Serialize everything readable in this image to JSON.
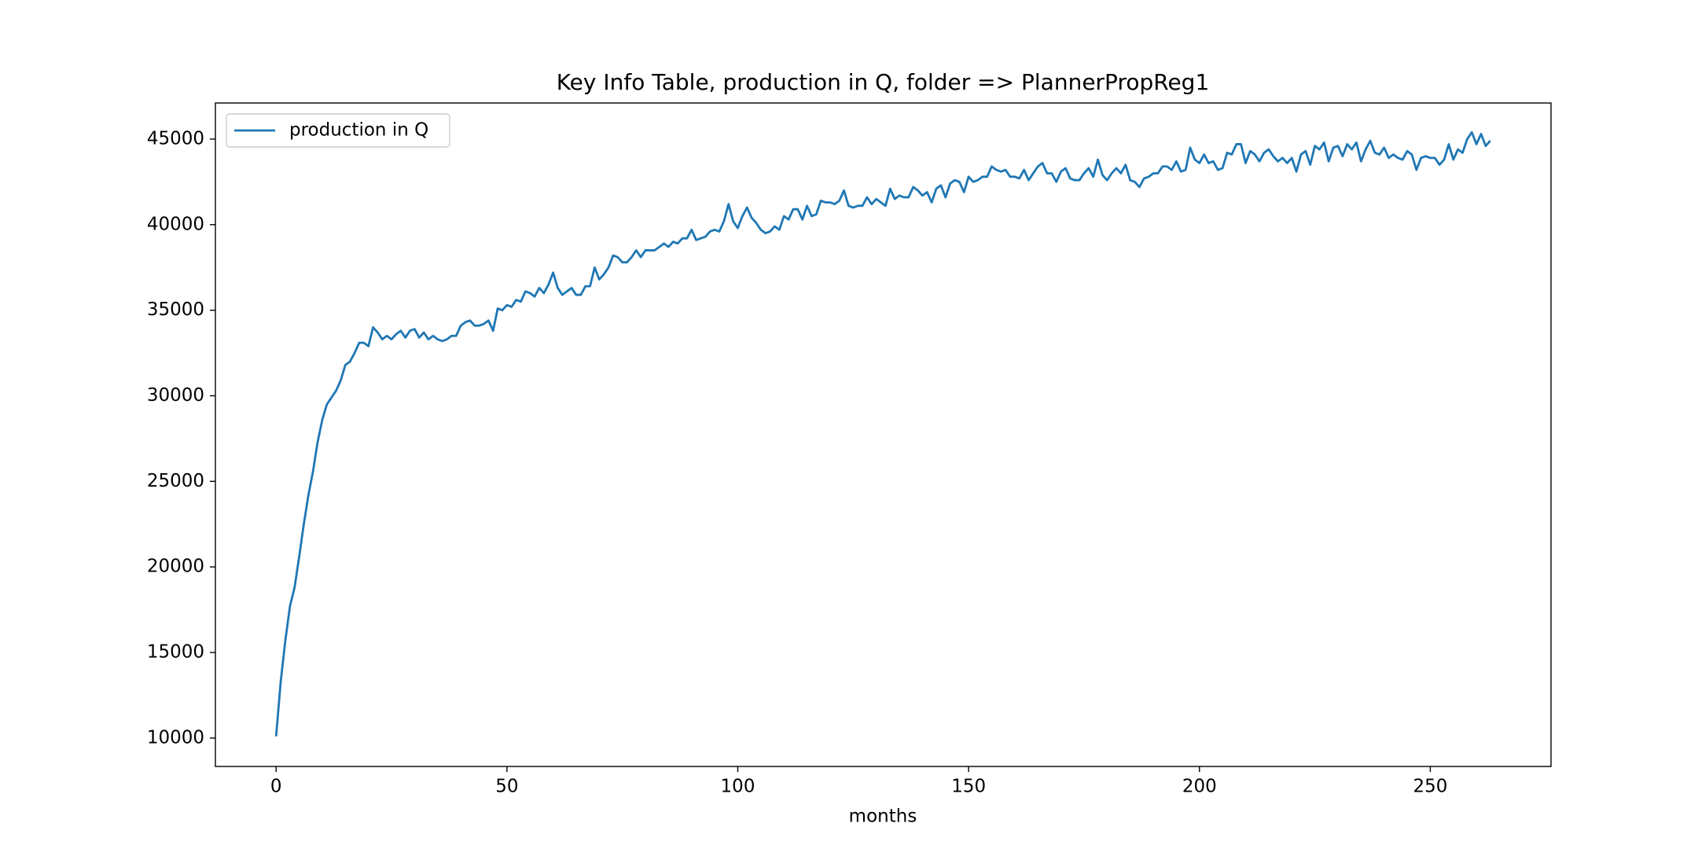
{
  "chart_data": {
    "type": "line",
    "title": "Key Info Table, production in Q, folder => PlannerPropReg1",
    "xlabel": "months",
    "x": [
      0,
      1,
      2,
      3,
      4,
      5,
      6,
      7,
      8,
      9,
      10,
      11,
      12,
      13,
      14,
      15,
      16,
      17,
      18,
      19,
      20,
      21,
      22,
      23,
      24,
      25,
      26,
      27,
      28,
      29,
      30,
      31,
      32,
      33,
      34,
      35,
      36,
      37,
      38,
      39,
      40,
      41,
      42,
      43,
      44,
      45,
      46,
      47,
      48,
      49,
      50,
      51,
      52,
      53,
      54,
      55,
      56,
      57,
      58,
      59,
      60,
      61,
      62,
      63,
      64,
      65,
      66,
      67,
      68,
      69,
      70,
      71,
      72,
      73,
      74,
      75,
      76,
      77,
      78,
      79,
      80,
      81,
      82,
      83,
      84,
      85,
      86,
      87,
      88,
      89,
      90,
      91,
      92,
      93,
      94,
      95,
      96,
      97,
      98,
      99,
      100,
      101,
      102,
      103,
      104,
      105,
      106,
      107,
      108,
      109,
      110,
      111,
      112,
      113,
      114,
      115,
      116,
      117,
      118,
      119,
      120,
      121,
      122,
      123,
      124,
      125,
      126,
      127,
      128,
      129,
      130,
      131,
      132,
      133,
      134,
      135,
      136,
      137,
      138,
      139,
      140,
      141,
      142,
      143,
      144,
      145,
      146,
      147,
      148,
      149,
      150,
      151,
      152,
      153,
      154,
      155,
      156,
      157,
      158,
      159,
      160,
      161,
      162,
      163,
      164,
      165,
      166,
      167,
      168,
      169,
      170,
      171,
      172,
      173,
      174,
      175,
      176,
      177,
      178,
      179,
      180,
      181,
      182,
      183,
      184,
      185,
      186,
      187,
      188,
      189,
      190,
      191,
      192,
      193,
      194,
      195,
      196,
      197,
      198,
      199,
      200,
      201,
      202,
      203,
      204,
      205,
      206,
      207,
      208,
      209,
      210,
      211,
      212,
      213,
      214,
      215,
      216,
      217,
      218,
      219,
      220,
      221,
      222,
      223,
      224,
      225,
      226,
      227,
      228,
      229,
      230,
      231,
      232,
      233,
      234,
      235,
      236,
      237,
      238,
      239,
      240,
      241,
      242,
      243,
      244,
      245,
      246,
      247,
      248,
      249,
      250,
      251,
      252,
      253,
      254,
      255,
      256,
      257,
      258,
      259,
      260,
      261,
      262,
      263
    ],
    "series": [
      {
        "name": "production in Q",
        "color": "#1f77b4",
        "values": [
          10100,
          13300,
          15700,
          17700,
          18800,
          20600,
          22500,
          24200,
          25600,
          27300,
          28600,
          29500,
          29900,
          30300,
          30900,
          31800,
          32000,
          32500,
          33100,
          33100,
          32900,
          34000,
          33700,
          33300,
          33500,
          33300,
          33600,
          33800,
          33400,
          33800,
          33900,
          33400,
          33700,
          33300,
          33500,
          33300,
          33200,
          33300,
          33500,
          33500,
          34100,
          34300,
          34400,
          34100,
          34100,
          34200,
          34400,
          33800,
          35100,
          35000,
          35300,
          35200,
          35600,
          35500,
          36100,
          36000,
          35800,
          36300,
          36000,
          36500,
          37200,
          36300,
          35900,
          36100,
          36300,
          35900,
          35900,
          36400,
          36400,
          37500,
          36800,
          37100,
          37500,
          38200,
          38100,
          37800,
          37800,
          38100,
          38500,
          38100,
          38500,
          38500,
          38500,
          38700,
          38900,
          38700,
          39000,
          38900,
          39200,
          39200,
          39700,
          39100,
          39200,
          39300,
          39600,
          39700,
          39600,
          40200,
          41200,
          40200,
          39800,
          40500,
          41000,
          40400,
          40100,
          39700,
          39500,
          39600,
          39900,
          39700,
          40500,
          40300,
          40900,
          40900,
          40300,
          41100,
          40500,
          40600,
          41400,
          41300,
          41300,
          41200,
          41400,
          42000,
          41100,
          41000,
          41100,
          41100,
          41600,
          41200,
          41500,
          41300,
          41100,
          42100,
          41500,
          41700,
          41600,
          41600,
          42200,
          42000,
          41700,
          41900,
          41300,
          42100,
          42300,
          41600,
          42400,
          42600,
          42500,
          41900,
          42800,
          42500,
          42600,
          42800,
          42800,
          43400,
          43200,
          43100,
          43200,
          42800,
          42800,
          42700,
          43200,
          42600,
          43000,
          43400,
          43600,
          43000,
          43000,
          42500,
          43100,
          43300,
          42700,
          42600,
          42600,
          43000,
          43300,
          42800,
          43800,
          42900,
          42600,
          43000,
          43300,
          43000,
          43500,
          42600,
          42500,
          42200,
          42700,
          42800,
          43000,
          43000,
          43400,
          43400,
          43200,
          43700,
          43100,
          43200,
          44500,
          43800,
          43600,
          44100,
          43600,
          43700,
          43200,
          43300,
          44200,
          44100,
          44700,
          44700,
          43600,
          44300,
          44100,
          43700,
          44200,
          44400,
          44000,
          43700,
          43900,
          43600,
          43900,
          43100,
          44100,
          44300,
          43500,
          44600,
          44400,
          44800,
          43700,
          44500,
          44600,
          44000,
          44700,
          44400,
          44800,
          43700,
          44400,
          44900,
          44200,
          44100,
          44500,
          43900,
          44100,
          43900,
          43800,
          44300,
          44100,
          43200,
          43900,
          44000,
          43900,
          43900,
          43500,
          43800,
          44700,
          43800,
          44400,
          44200,
          45000,
          45400,
          44700,
          45300,
          44600,
          44900
        ]
      }
    ],
    "xlim": [
      -13.15,
      276.15
    ],
    "xticks": [
      0,
      50,
      100,
      150,
      200,
      250
    ],
    "ylim": [
      8340,
      47110
    ],
    "yticks": [
      10000,
      15000,
      20000,
      25000,
      30000,
      35000,
      40000,
      45000
    ],
    "grid": false,
    "legend": "upper left"
  }
}
